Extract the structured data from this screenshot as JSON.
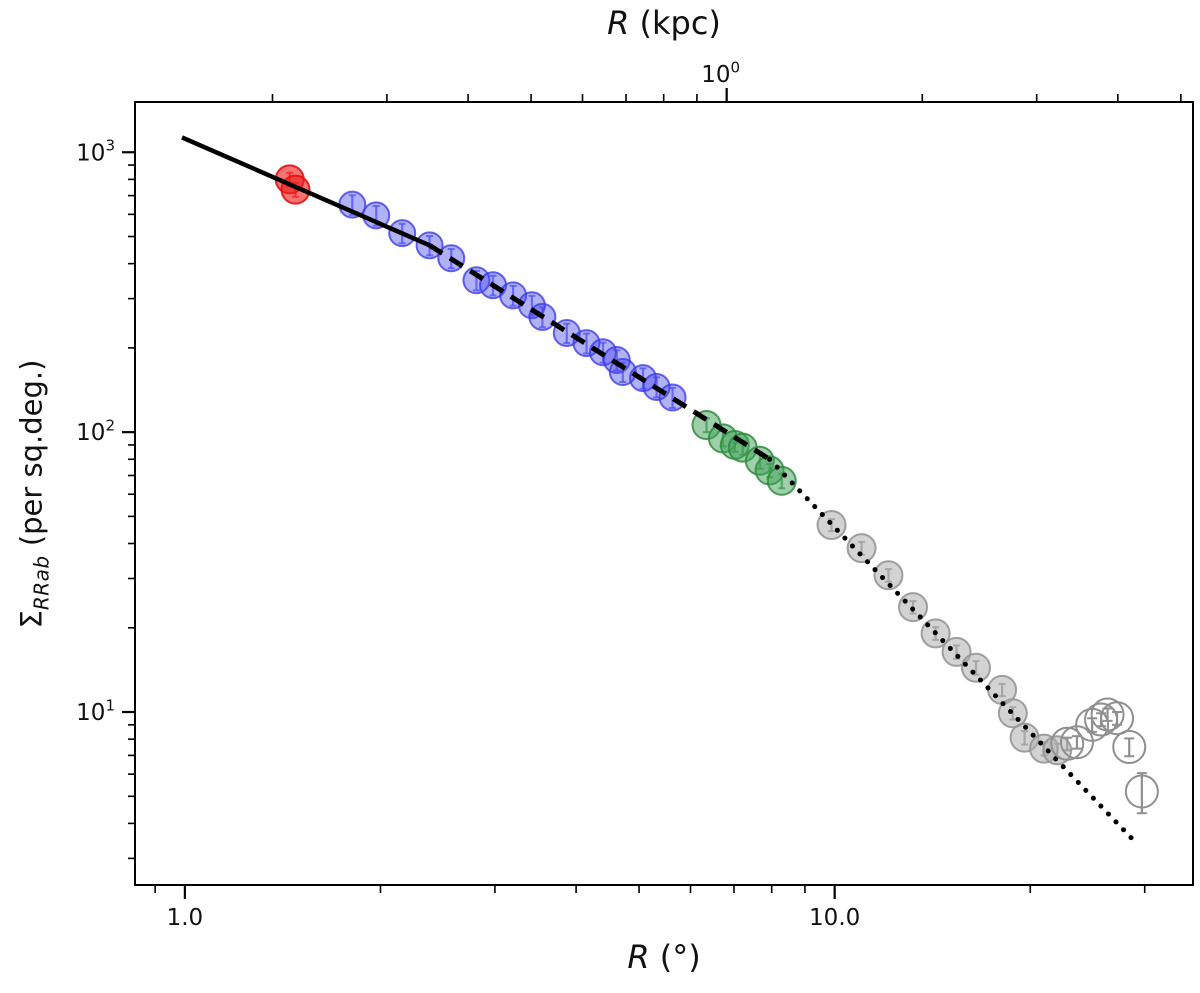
{
  "figure": {
    "background": "#ffffff",
    "frame_color": "#000000"
  },
  "titles": {
    "top_axis_var": "R",
    "top_axis_unit": " (kpc)",
    "bottom_axis_var": "R",
    "bottom_axis_unit": " (°)",
    "y_axis_sigma": "Σ",
    "y_axis_sub": "RRab",
    "y_axis_unit": " (per sq.deg.)"
  },
  "chart_data": {
    "type": "scatter",
    "title": "",
    "xlabel_bottom": "R (°)",
    "xlabel_top": "R (kpc)",
    "ylabel": "Σ_RRab (per sq.deg.)",
    "x_scale": "log",
    "y_scale": "log",
    "grid": false,
    "legend": false,
    "x_range_deg": [
      0.838,
      35.6
    ],
    "y_range": [
      2.41,
      1512
    ],
    "deg_per_kpc": 6.82,
    "x_ticks_bottom": [
      {
        "value": 1.0,
        "label": "1.0"
      },
      {
        "value": 10.0,
        "label": "10.0"
      }
    ],
    "x_ticks_top": [
      {
        "value_kpc": 1.0,
        "base": "10",
        "exp": "0"
      }
    ],
    "y_ticks": [
      {
        "value": 10,
        "base": "10",
        "exp": "1"
      },
      {
        "value": 100,
        "base": "10",
        "exp": "2"
      },
      {
        "value": 1000,
        "base": "10",
        "exp": "3"
      }
    ],
    "line_color": "#000000",
    "fit_segments": [
      {
        "style": "solid",
        "r_start": 0.99,
        "sigma_start": 1130,
        "r_end": 2.38,
        "sigma_end": 465
      },
      {
        "style": "dashed",
        "r_start": 2.38,
        "sigma_start": 465,
        "r_end": 7.94,
        "sigma_end": 80
      },
      {
        "style": "dotted",
        "r_start": 7.94,
        "sigma_start": 80,
        "r_end": 29.3,
        "sigma_end": 3.35
      }
    ],
    "series": [
      {
        "name": "inner-red",
        "marker": "filled-circle",
        "radius_px": 14,
        "fill": "rgba(238,30,30,0.62)",
        "edge": "rgba(225,15,15,0.9)",
        "err_color": "rgba(235,60,60,0.85)",
        "points": [
          [
            1.45,
            800,
            45
          ],
          [
            1.48,
            735,
            42
          ]
        ]
      },
      {
        "name": "mid-blue",
        "marker": "filled-circle",
        "radius_px": 13,
        "fill": "rgba(68,68,239,0.42)",
        "edge": "rgba(58,58,230,0.78)",
        "err_color": "rgba(90,90,240,0.75)",
        "points": [
          [
            1.81,
            650,
            52
          ],
          [
            1.97,
            595,
            48
          ],
          [
            2.16,
            514,
            41
          ],
          [
            2.38,
            465,
            37
          ],
          [
            2.57,
            418,
            33
          ],
          [
            2.81,
            349,
            28
          ],
          [
            2.98,
            335,
            27
          ],
          [
            3.2,
            308,
            25
          ],
          [
            3.42,
            284,
            23
          ],
          [
            3.55,
            258,
            21
          ],
          [
            3.87,
            226,
            18
          ],
          [
            4.15,
            208,
            17
          ],
          [
            4.4,
            193,
            16
          ],
          [
            4.62,
            181,
            15
          ],
          [
            4.72,
            164,
            13
          ],
          [
            5.07,
            156,
            13
          ],
          [
            5.32,
            145,
            12
          ],
          [
            5.63,
            133,
            11
          ]
        ]
      },
      {
        "name": "outer-green",
        "marker": "filled-circle",
        "radius_px": 14,
        "fill": "rgba(62,160,85,0.5)",
        "edge": "rgba(45,140,60,0.85)",
        "err_color": "rgba(70,160,90,0.85)",
        "points": [
          [
            6.35,
            106,
            6
          ],
          [
            6.73,
            95,
            6
          ],
          [
            7.02,
            90,
            5
          ],
          [
            7.22,
            88,
            5
          ],
          [
            7.67,
            79,
            5
          ],
          [
            7.94,
            73,
            4
          ],
          [
            8.29,
            67,
            4
          ]
        ]
      },
      {
        "name": "halo-gray-filled",
        "marker": "filled-circle",
        "radius_px": 14,
        "fill": "rgba(175,175,175,0.55)",
        "edge": "rgba(150,150,150,0.9)",
        "err_color": "rgba(150,150,150,0.9)",
        "points": [
          [
            9.89,
            46.6,
            2.3
          ],
          [
            11.0,
            38.5,
            2.0
          ],
          [
            12.1,
            30.8,
            1.6
          ],
          [
            13.2,
            23.7,
            1.2
          ],
          [
            14.3,
            19.1,
            1.0
          ],
          [
            15.4,
            16.4,
            0.9
          ],
          [
            16.5,
            14.4,
            0.8
          ],
          [
            18.1,
            12.0,
            0.6
          ],
          [
            18.8,
            9.9,
            0.5
          ],
          [
            19.6,
            8.1,
            0.45
          ],
          [
            21.0,
            7.4,
            0.4
          ],
          [
            22.0,
            7.3,
            0.4
          ]
        ]
      },
      {
        "name": "halo-gray-open",
        "marker": "open-circle",
        "radius_px": 16,
        "fill": "none",
        "edge": "#8f8f8f",
        "err_color": "#8f8f8f",
        "points": [
          [
            22.8,
            7.7,
            0.4
          ],
          [
            23.6,
            7.8,
            0.4
          ],
          [
            24.9,
            9.0,
            0.5
          ],
          [
            25.7,
            9.4,
            0.5
          ],
          [
            26.3,
            9.8,
            0.5
          ],
          [
            27.2,
            9.5,
            0.5
          ],
          [
            28.4,
            7.5,
            0.55
          ],
          [
            29.7,
            5.2,
            0.85
          ]
        ]
      }
    ]
  }
}
